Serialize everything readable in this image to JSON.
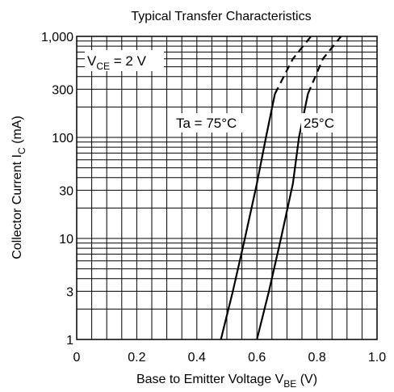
{
  "chart_data": {
    "type": "line",
    "title": "Typical Transfer Characteristics",
    "xlabel": {
      "main": "Base to Emitter Voltage  V",
      "sub": "BE",
      "unit": "  (V)"
    },
    "ylabel": {
      "main": "Collector Current  I",
      "sub": "C",
      "unit": "  (mA)"
    },
    "xlim": [
      0,
      1.0
    ],
    "ylim": [
      1,
      1000
    ],
    "yscale": "log",
    "grid": true,
    "x_ticks": [
      {
        "value": 0,
        "label": "0"
      },
      {
        "value": 0.2,
        "label": "0.2"
      },
      {
        "value": 0.4,
        "label": "0.4"
      },
      {
        "value": 0.6,
        "label": "0.6"
      },
      {
        "value": 0.8,
        "label": "0.8"
      },
      {
        "value": 1.0,
        "label": "1.0"
      }
    ],
    "y_ticks": [
      {
        "value": 1,
        "label": "1"
      },
      {
        "value": 3,
        "label": "3"
      },
      {
        "value": 10,
        "label": "10"
      },
      {
        "value": 30,
        "label": "30"
      },
      {
        "value": 100,
        "label": "100"
      },
      {
        "value": 300,
        "label": "300"
      },
      {
        "value": 1000,
        "label": "1,000"
      }
    ],
    "annotations": {
      "condition": {
        "main": "V",
        "sub": "CE",
        "rest": " = 2 V"
      },
      "curve_75": "Ta = 75°C",
      "curve_25": "25°C"
    },
    "series": [
      {
        "name": "Ta = 75°C",
        "solid": [
          [
            0.48,
            1
          ],
          [
            0.52,
            3
          ],
          [
            0.56,
            10
          ],
          [
            0.6,
            35
          ],
          [
            0.63,
            100
          ],
          [
            0.66,
            270
          ]
        ],
        "dashed": [
          [
            0.66,
            270
          ],
          [
            0.72,
            600
          ],
          [
            0.78,
            1000
          ]
        ]
      },
      {
        "name": "25°C",
        "solid": [
          [
            0.6,
            1
          ],
          [
            0.64,
            3
          ],
          [
            0.68,
            10
          ],
          [
            0.72,
            35
          ],
          [
            0.74,
            100
          ],
          [
            0.77,
            270
          ]
        ],
        "dashed": [
          [
            0.77,
            270
          ],
          [
            0.82,
            600
          ],
          [
            0.88,
            1000
          ]
        ]
      }
    ]
  }
}
